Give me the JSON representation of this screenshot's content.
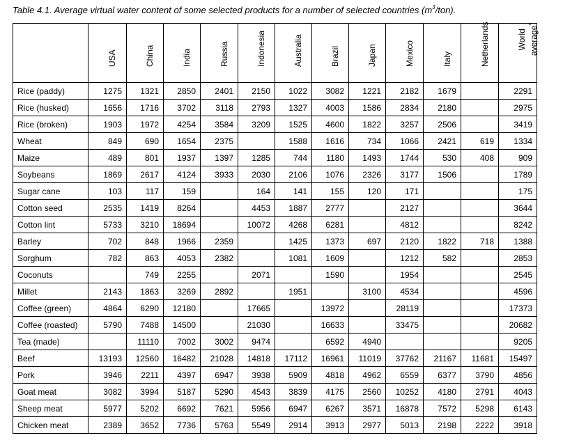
{
  "caption": {
    "text_before": "Table 4.1. Average virtual water content of some selected products for a number of selected countries (m",
    "sup": "3",
    "text_after": "/ton)."
  },
  "table": {
    "columns": [
      "USA",
      "China",
      "India",
      "Russia",
      "Indonesia",
      "Australia",
      "Brazil",
      "Japan",
      "Mexico",
      "Italy",
      "Netherlands",
      "World average"
    ],
    "world_average_lines": [
      "World",
      "average"
    ],
    "world_average_marker": "*",
    "rows": [
      {
        "product": "Rice (paddy)",
        "values": [
          "1275",
          "1321",
          "2850",
          "2401",
          "2150",
          "1022",
          "3082",
          "1221",
          "2182",
          "1679",
          "",
          "2291"
        ]
      },
      {
        "product": "Rice (husked)",
        "values": [
          "1656",
          "1716",
          "3702",
          "3118",
          "2793",
          "1327",
          "4003",
          "1586",
          "2834",
          "2180",
          "",
          "2975"
        ]
      },
      {
        "product": "Rice (broken)",
        "values": [
          "1903",
          "1972",
          "4254",
          "3584",
          "3209",
          "1525",
          "4600",
          "1822",
          "3257",
          "2506",
          "",
          "3419"
        ]
      },
      {
        "product": "Wheat",
        "values": [
          "849",
          "690",
          "1654",
          "2375",
          "",
          "1588",
          "1616",
          "734",
          "1066",
          "2421",
          "619",
          "1334"
        ]
      },
      {
        "product": "Maize",
        "values": [
          "489",
          "801",
          "1937",
          "1397",
          "1285",
          "744",
          "1180",
          "1493",
          "1744",
          "530",
          "408",
          "909"
        ]
      },
      {
        "product": "Soybeans",
        "values": [
          "1869",
          "2617",
          "4124",
          "3933",
          "2030",
          "2106",
          "1076",
          "2326",
          "3177",
          "1506",
          "",
          "1789"
        ]
      },
      {
        "product": "Sugar cane",
        "values": [
          "103",
          "117",
          "159",
          "",
          "164",
          "141",
          "155",
          "120",
          "171",
          "",
          "",
          "175"
        ]
      },
      {
        "product": "Cotton seed",
        "values": [
          "2535",
          "1419",
          "8264",
          "",
          "4453",
          "1887",
          "2777",
          "",
          "2127",
          "",
          "",
          "3644"
        ]
      },
      {
        "product": "Cotton lint",
        "values": [
          "5733",
          "3210",
          "18694",
          "",
          "10072",
          "4268",
          "6281",
          "",
          "4812",
          "",
          "",
          "8242"
        ]
      },
      {
        "product": "Barley",
        "values": [
          "702",
          "848",
          "1966",
          "2359",
          "",
          "1425",
          "1373",
          "697",
          "2120",
          "1822",
          "718",
          "1388"
        ]
      },
      {
        "product": "Sorghum",
        "values": [
          "782",
          "863",
          "4053",
          "2382",
          "",
          "1081",
          "1609",
          "",
          "1212",
          "582",
          "",
          "2853"
        ]
      },
      {
        "product": "Coconuts",
        "values": [
          "",
          "749",
          "2255",
          "",
          "2071",
          "",
          "1590",
          "",
          "1954",
          "",
          "",
          "2545"
        ]
      },
      {
        "product": "Millet",
        "values": [
          "2143",
          "1863",
          "3269",
          "2892",
          "",
          "1951",
          "",
          "3100",
          "4534",
          "",
          "",
          "4596"
        ]
      },
      {
        "product": "Coffee (green)",
        "values": [
          "4864",
          "6290",
          "12180",
          "",
          "17665",
          "",
          "13972",
          "",
          "28119",
          "",
          "",
          "17373"
        ]
      },
      {
        "product": "Coffee (roasted)",
        "values": [
          "5790",
          "7488",
          "14500",
          "",
          "21030",
          "",
          "16633",
          "",
          "33475",
          "",
          "",
          "20682"
        ]
      },
      {
        "product": "Tea (made)",
        "values": [
          "",
          "11110",
          "7002",
          "3002",
          "9474",
          "",
          "6592",
          "4940",
          "",
          "",
          "",
          "9205"
        ]
      },
      {
        "product": "Beef",
        "values": [
          "13193",
          "12560",
          "16482",
          "21028",
          "14818",
          "17112",
          "16961",
          "11019",
          "37762",
          "21167",
          "11681",
          "15497"
        ]
      },
      {
        "product": "Pork",
        "values": [
          "3946",
          "2211",
          "4397",
          "6947",
          "3938",
          "5909",
          "4818",
          "4962",
          "6559",
          "6377",
          "3790",
          "4856"
        ]
      },
      {
        "product": "Goat meat",
        "values": [
          "3082",
          "3994",
          "5187",
          "5290",
          "4543",
          "3839",
          "4175",
          "2560",
          "10252",
          "4180",
          "2791",
          "4043"
        ]
      },
      {
        "product": "Sheep meat",
        "values": [
          "5977",
          "5202",
          "6692",
          "7621",
          "5956",
          "6947",
          "6267",
          "3571",
          "16878",
          "7572",
          "5298",
          "6143"
        ]
      },
      {
        "product": "Chicken meat",
        "values": [
          "2389",
          "3652",
          "7736",
          "5763",
          "5549",
          "2914",
          "3913",
          "2977",
          "5013",
          "2198",
          "2222",
          "3918"
        ]
      }
    ]
  }
}
